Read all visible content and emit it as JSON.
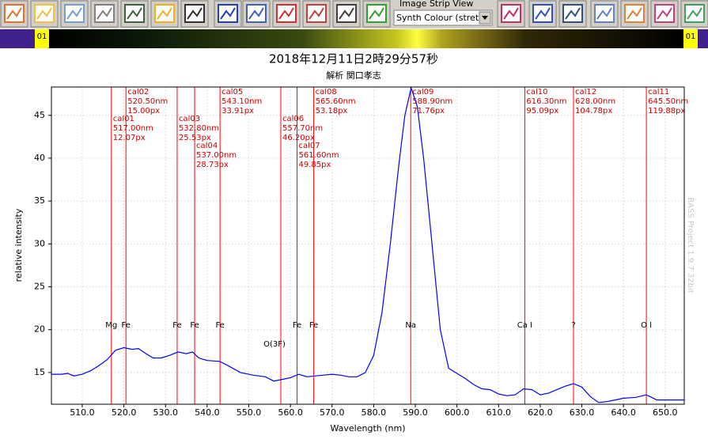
{
  "toolbar": {
    "strip_view_label": "Image Strip View",
    "colour_select": "Synth Colour (stretc"
  },
  "strip": {
    "left_label": "01",
    "right_label": "01"
  },
  "chart_data": {
    "type": "line",
    "title": "2018年12月11日2時29分57秒",
    "subtitle": "解析 関口孝志",
    "y_label": "relative intensity",
    "x_label": "Wavelength (nm)",
    "watermark": "BASS Project 1.9.7 32bit",
    "xlim": [
      502.6,
      654.6
    ],
    "ylim": [
      11.3,
      48.3
    ],
    "xticks": [
      {
        "value": 510,
        "label": "510.0"
      },
      {
        "value": 520,
        "label": "520.0"
      },
      {
        "value": 530,
        "label": "530.0"
      },
      {
        "value": 540,
        "label": "540.0"
      },
      {
        "value": 550,
        "label": "550.0"
      },
      {
        "value": 560,
        "label": "560.0"
      },
      {
        "value": 570,
        "label": "570.0"
      },
      {
        "value": 580,
        "label": "580.0"
      },
      {
        "value": 590,
        "label": "590.0"
      },
      {
        "value": 600,
        "label": "600.0"
      },
      {
        "value": 610,
        "label": "610.0"
      },
      {
        "value": 620,
        "label": "620.0"
      },
      {
        "value": 630,
        "label": "630.0"
      },
      {
        "value": 640,
        "label": "640.0"
      },
      {
        "value": 650,
        "label": "650.0"
      }
    ],
    "yticks": [
      15,
      20,
      25,
      30,
      35,
      40,
      45
    ],
    "grid": true,
    "series": [
      {
        "color": "#0000ff",
        "x": [
          502.6,
          505,
          506.5,
          508,
          510,
          512,
          514,
          516,
          518,
          520,
          522,
          523.5,
          525,
          527,
          529,
          531,
          533,
          535,
          536.5,
          538,
          540,
          543,
          545,
          548,
          551,
          554,
          556,
          558,
          560,
          562,
          564,
          566,
          568,
          570,
          572,
          574,
          576,
          578,
          580,
          582,
          584,
          586,
          587.5,
          589,
          590.5,
          592,
          594,
          596,
          598,
          600,
          602,
          604,
          606,
          608,
          610,
          612,
          614,
          616,
          618,
          620,
          622,
          624,
          626,
          628,
          630,
          632,
          634,
          636,
          638,
          640,
          643,
          645.5,
          648,
          652,
          654.6
        ],
        "values": [
          14.8,
          14.8,
          14.9,
          14.6,
          14.8,
          15.2,
          15.8,
          16.5,
          17.6,
          17.9,
          17.7,
          17.8,
          17.3,
          16.7,
          16.7,
          17.0,
          17.4,
          17.2,
          17.4,
          16.7,
          16.4,
          16.3,
          15.8,
          15.0,
          14.7,
          14.5,
          14.0,
          14.2,
          14.4,
          14.8,
          14.5,
          14.6,
          14.7,
          14.8,
          14.7,
          14.5,
          14.5,
          15.0,
          17.0,
          22.0,
          30.0,
          39.0,
          45.0,
          48.2,
          46.0,
          40.0,
          30.0,
          20.0,
          15.5,
          14.9,
          14.3,
          13.6,
          13.1,
          13.0,
          12.5,
          12.3,
          12.4,
          13.1,
          13.0,
          12.4,
          12.6,
          13.0,
          13.4,
          13.7,
          13.3,
          12.2,
          11.5,
          11.6,
          11.8,
          12.0,
          12.1,
          12.4,
          11.8,
          11.8,
          11.8
        ]
      }
    ],
    "calibrations": [
      {
        "name": "cal01",
        "wavelength": {
          "value": 517.0,
          "label": "517.00nm"
        },
        "px": "12.07px",
        "element": "Mg"
      },
      {
        "name": "cal02",
        "wavelength": {
          "value": 520.5,
          "label": "520.50nm"
        },
        "px": "15.00px",
        "element": "Fe"
      },
      {
        "name": "cal03",
        "wavelength": {
          "value": 532.8,
          "label": "532.80nm"
        },
        "px": "25.53px",
        "element": "Fe"
      },
      {
        "name": "cal04",
        "wavelength": {
          "value": 537.0,
          "label": "537.00nm"
        },
        "px": "28.73px",
        "element": "Fe"
      },
      {
        "name": "cal05",
        "wavelength": {
          "value": 543.1,
          "label": "543.10nm"
        },
        "px": "33.91px",
        "element": "Fe"
      },
      {
        "name": "cal06",
        "wavelength": {
          "value": 557.7,
          "label": "557.70nm"
        },
        "px": "46.20px",
        "element": "O(3F)"
      },
      {
        "name": "cal07",
        "wavelength": {
          "value": 561.6,
          "label": "561.60nm"
        },
        "px": "49.85px",
        "element": "Fe"
      },
      {
        "name": "cal08",
        "wavelength": {
          "value": 565.6,
          "label": "565.60nm"
        },
        "px": "53.18px",
        "element": "Fe"
      },
      {
        "name": "cal09",
        "wavelength": {
          "value": 588.9,
          "label": "588.90nm"
        },
        "px": "71.76px",
        "element": "Na"
      },
      {
        "name": "cal10",
        "wavelength": {
          "value": 616.3,
          "label": "616.30nm"
        },
        "px": "95.09px",
        "element": "Ca I"
      },
      {
        "name": "cal12",
        "wavelength": {
          "value": 628.0,
          "label": "628.00nm"
        },
        "px": "104.78px",
        "element": "?"
      },
      {
        "name": "cal11",
        "wavelength": {
          "value": 645.5,
          "label": "645.50nm"
        },
        "px": "119.88px",
        "element": "O I"
      }
    ]
  }
}
